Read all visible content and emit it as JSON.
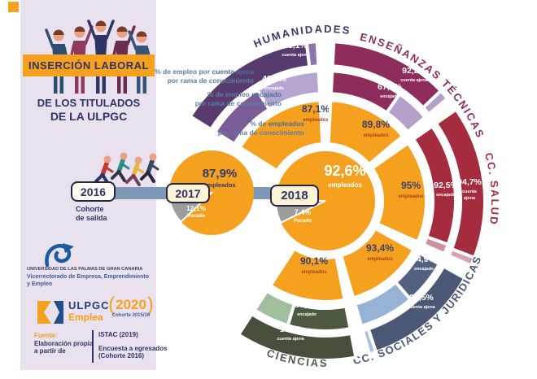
{
  "sidebar": {
    "banner": {
      "text": "INSERCIÓN LABORAL"
    },
    "subtitle_line1": "DE LOS TITULADOS",
    "subtitle_line2": "DE LA ULPGC",
    "university": {
      "name": "UNIVERSIDAD DE LAS PALMAS DE GRAN CANARIA",
      "dept_line1": "Vicerrectorado de Empresa, Emprendimiento",
      "dept_line2": "y Empleo"
    },
    "emplea": {
      "brand_top": "ULPGC",
      "brand_bottom": "Emplea",
      "paren_open": "(",
      "year": "2020",
      "paren_close": ")",
      "cohort": "Cohorte 2015/16"
    },
    "source": {
      "label": "Fuente:",
      "line1": "Elaboración propia",
      "line2": "a partir de",
      "right1": "ISTAC (2019)",
      "right2": "Encuesta a egresados",
      "right3": "(Cohorte 2016)"
    }
  },
  "timeline": {
    "start_year": "2016",
    "mid_year": "2017",
    "end_year": "2018",
    "caption_line1": "Cohorte",
    "caption_line2": "de salida"
  },
  "legend": [
    {
      "pre": "% de empleo por ",
      "bold": "cuenta ajena",
      "line2": "por rama de conocimiento"
    },
    {
      "pre": "% de empleo ",
      "bold": "encajado",
      "line2": "por rama de conocimiento"
    },
    {
      "pre": "% de ",
      "bold": "empleados",
      "line2": "por rama de conocimiento"
    }
  ],
  "chart_data": {
    "type": "pie",
    "colors": {
      "employed": "#f5a01e",
      "unemployed": "#9c9c9c"
    },
    "metric_sublabels": {
      "empleados": "empleados",
      "encajado": "encajado",
      "cuenta_ajena": "cuenta ajena",
      "parado": "Parado"
    },
    "pies": [
      {
        "year": "2017",
        "employed": 87.9,
        "unemployed": 12.1,
        "employed_text": "87,9%",
        "unemployed_text": "12,1%"
      },
      {
        "year": "2018",
        "employed": 92.6,
        "unemployed": 7.4,
        "employed_text": "92,6%",
        "unemployed_text": "7,4%"
      }
    ],
    "radial": {
      "type": "radial-bar",
      "rings_order_inner_to_outer": [
        "empleados",
        "encajado",
        "cuenta ajena"
      ],
      "sectors": [
        {
          "name": "HUMANIDADES",
          "empleados": 87.1,
          "encajado": 48.1,
          "cuenta_ajena": 93.1,
          "labels": {
            "empleados": "87,1%",
            "encajado": "48,1%",
            "cuenta_ajena": "93,1%"
          },
          "colors": {
            "bar": "#573a6e",
            "bar_mid": "#7a5c96",
            "tail": "#8f74ab",
            "tail_mid": "#b5a5d0",
            "title": "#3f3768"
          }
        },
        {
          "name": "ENSEÑANZAS TÉCNICAS",
          "empleados": 89.8,
          "encajado": 67.6,
          "cuenta_ajena": 92.2,
          "labels": {
            "empleados": "89,8%",
            "encajado": "67,6%",
            "cuenta_ajena": "92,2%"
          },
          "colors": {
            "bar": "#8e2c5c",
            "bar_mid": "#8e2c5c",
            "tail": "#b49fc8",
            "tail_mid": "#b49fc8",
            "title": "#8e2c5c"
          }
        },
        {
          "name": "CC. SALUD",
          "empleados": 95,
          "encajado": 92.5,
          "cuenta_ajena": 94.7,
          "labels": {
            "empleados": "95%",
            "encajado": "92,5%",
            "cuenta_ajena": "94,7%"
          },
          "colors": {
            "bar": "#a52c3e",
            "bar_mid": "#a52c3e",
            "tail": "#d5a3b2",
            "tail_mid": "#cf8fa0",
            "title": "#a52c3e"
          }
        },
        {
          "name": "CC. SOCIALES Y JURÍDICAS",
          "empleados": 93.4,
          "encajado": 44.9,
          "cuenta_ajena": 94.5,
          "labels": {
            "empleados": "93,4%",
            "encajado": "44,9%",
            "cuenta_ajena": "94,5%"
          },
          "colors": {
            "bar": "#4a5875",
            "bar_mid": "#52617f",
            "tail": "#a9c2de",
            "tail_mid": "#96b2d4",
            "title": "#4a5875"
          }
        },
        {
          "name": "CIENCIAS",
          "empleados": 90.1,
          "encajado": 63.2,
          "cuenta_ajena": 100,
          "labels": {
            "empleados": "90,1%",
            "encajado": "63,2%",
            "cuenta_ajena": "100%"
          },
          "colors": {
            "bar": "#454f3c",
            "bar_mid": "#4d5943",
            "tail": "#a2c1a1",
            "tail_mid": "#9fbf9e",
            "title": "#55564f"
          }
        }
      ]
    }
  }
}
